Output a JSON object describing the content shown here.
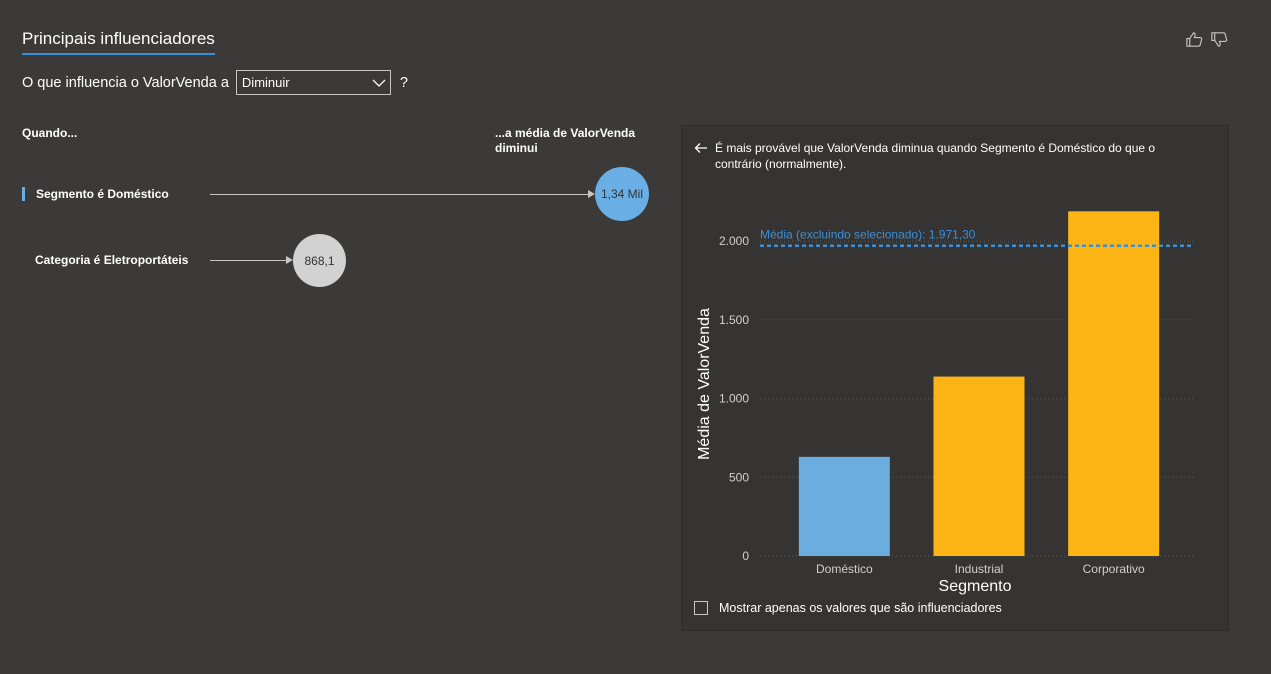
{
  "header": {
    "title": "Principais influenciadores",
    "thumbs_up_icon": "thumbs-up-icon",
    "thumbs_down_icon": "thumbs-down-icon"
  },
  "question": {
    "prefix": "O que influencia o ValorVenda a",
    "dropdown_value": "Diminuir",
    "suffix": "?"
  },
  "columns": {
    "when": "Quando...",
    "then": "...a média de ValorVenda diminui"
  },
  "influencers": [
    {
      "label": "Segmento é Doméstico",
      "value": "1,34 Mil",
      "selected": true,
      "color": "#6aaee6"
    },
    {
      "label": "Categoria é Eletroportáteis",
      "value": "868,1",
      "selected": false,
      "color": "#d2d2d2"
    }
  ],
  "detail": {
    "description": "É mais provável que ValorVenda diminua quando Segmento é Doméstico do que o contrário (normalmente).",
    "checkbox_label": "Mostrar apenas os valores que são influenciadores"
  },
  "chart_data": {
    "type": "bar",
    "categories": [
      "Doméstico",
      "Industrial",
      "Corporativo"
    ],
    "values": [
      630,
      1140,
      2190
    ],
    "bar_colors": [
      "#6cade0",
      "#fdb515",
      "#fdb515"
    ],
    "xlabel": "Segmento",
    "ylabel": "Média de ValorVenda",
    "ylim": [
      0,
      2300
    ],
    "yticks": [
      0,
      500,
      1000,
      1500,
      2000
    ],
    "ytick_labels": [
      "0",
      "500",
      "1.000",
      "1.500",
      "2.000"
    ],
    "reference_line": {
      "value": 1971.3,
      "label": "Média (excluindo selecionado): 1.971,30",
      "color": "#3b8fd8"
    },
    "grid": true
  }
}
